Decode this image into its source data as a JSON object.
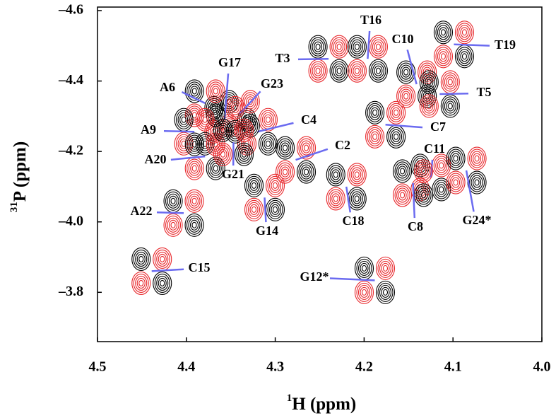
{
  "chart_data": {
    "type": "contour",
    "x_label": {
      "sup": "1",
      "text": "H (ppm)"
    },
    "y_label": {
      "sup": "31",
      "text": "P (ppm)"
    },
    "xlim": [
      4.5,
      4.0
    ],
    "xticks": [
      4.5,
      4.4,
      4.3,
      4.2,
      4.1,
      {
        "value": 4,
        "label": "4.0"
      }
    ],
    "ylim": [
      -3.66,
      -4.61
    ],
    "yticks": [
      {
        "value": -4.6,
        "label": "–4.6"
      },
      {
        "value": -4.4,
        "label": "–4.4"
      },
      {
        "value": -4.2,
        "label": "–4.2"
      },
      {
        "value": -4,
        "label": "–4.0"
      },
      {
        "value": -3.8,
        "label": "–3.8"
      }
    ],
    "colors": [
      "#000000",
      "#e8262a"
    ],
    "arrow_color": "#6b6bf0",
    "peaks": [
      {
        "label": "T3",
        "x": 4.24,
        "y": -4.463
      },
      {
        "label": "T16",
        "x": 4.196,
        "y": -4.463
      },
      {
        "label": "T19",
        "x": 4.099,
        "y": -4.504
      },
      {
        "label": "C10",
        "x": 4.141,
        "y": -4.391
      },
      {
        "label": "T5",
        "x": 4.115,
        "y": -4.363
      },
      {
        "label": "C7",
        "x": 4.176,
        "y": -4.276
      },
      {
        "label": "C11",
        "x": 4.125,
        "y": -4.126
      },
      {
        "label": "G24*",
        "x": 4.085,
        "y": -4.146
      },
      {
        "label": "C8",
        "x": 4.145,
        "y": -4.11
      },
      {
        "label": "C2",
        "x": 4.277,
        "y": -4.176
      },
      {
        "label": "C18",
        "x": 4.22,
        "y": -4.1
      },
      {
        "label": "G14",
        "x": 4.312,
        "y": -4.069
      },
      {
        "label": "C4",
        "x": 4.32,
        "y": -4.256
      },
      {
        "label": "G23",
        "x": 4.34,
        "y": -4.307
      },
      {
        "label": "G17",
        "x": 4.357,
        "y": -4.29
      },
      {
        "label": "A6",
        "x": 4.379,
        "y": -4.337
      },
      {
        "label": "A9",
        "x": 4.391,
        "y": -4.256
      },
      {
        "label": "A20",
        "x": 4.379,
        "y": -4.186
      },
      {
        "label": "G21",
        "x": 4.347,
        "y": -4.226
      },
      {
        "label": "A22",
        "x": 4.403,
        "y": -4.025
      },
      {
        "label": "C15",
        "x": 4.439,
        "y": -3.86
      },
      {
        "label": "G12*",
        "x": 4.188,
        "y": -3.834
      }
    ]
  }
}
